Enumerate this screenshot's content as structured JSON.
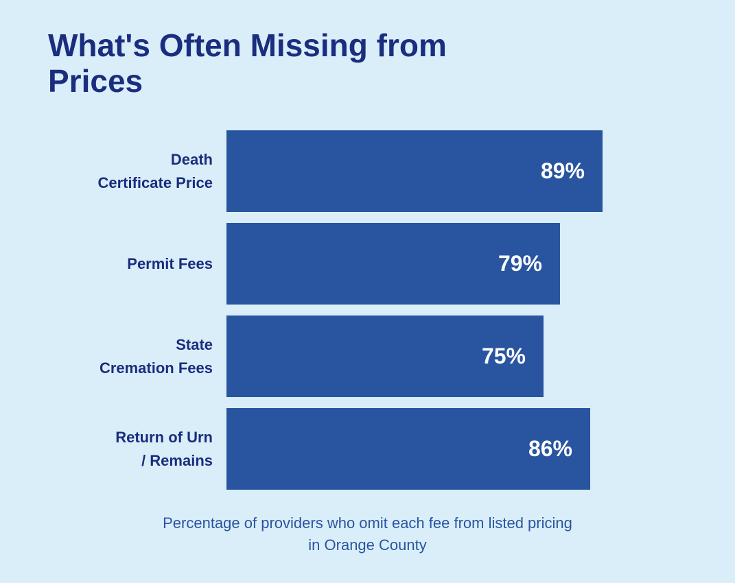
{
  "chart_data": {
    "type": "bar",
    "orientation": "horizontal",
    "title": "What's Often Missing from Prices",
    "categories": [
      "Death\nCertificate Price",
      "Permit Fees",
      "State\nCremation Fees",
      "Return of Urn\n/ Remains"
    ],
    "values": [
      89,
      79,
      75,
      86
    ],
    "value_labels": [
      "89%",
      "79%",
      "75%",
      "86%"
    ],
    "unit": "%",
    "xlim": [
      0,
      100
    ],
    "xlabel": "",
    "ylabel": "",
    "grid": false,
    "legend": "none",
    "caption_lines": [
      "Percentage of providers who omit each fee from listed pricing",
      "in Orange County"
    ],
    "colors": {
      "background": "#daeef9",
      "bar": "#2955a0",
      "title": "#1b2d7e",
      "category_label": "#1b2d7e",
      "value_label": "#ffffff",
      "caption": "#2955a0"
    }
  }
}
